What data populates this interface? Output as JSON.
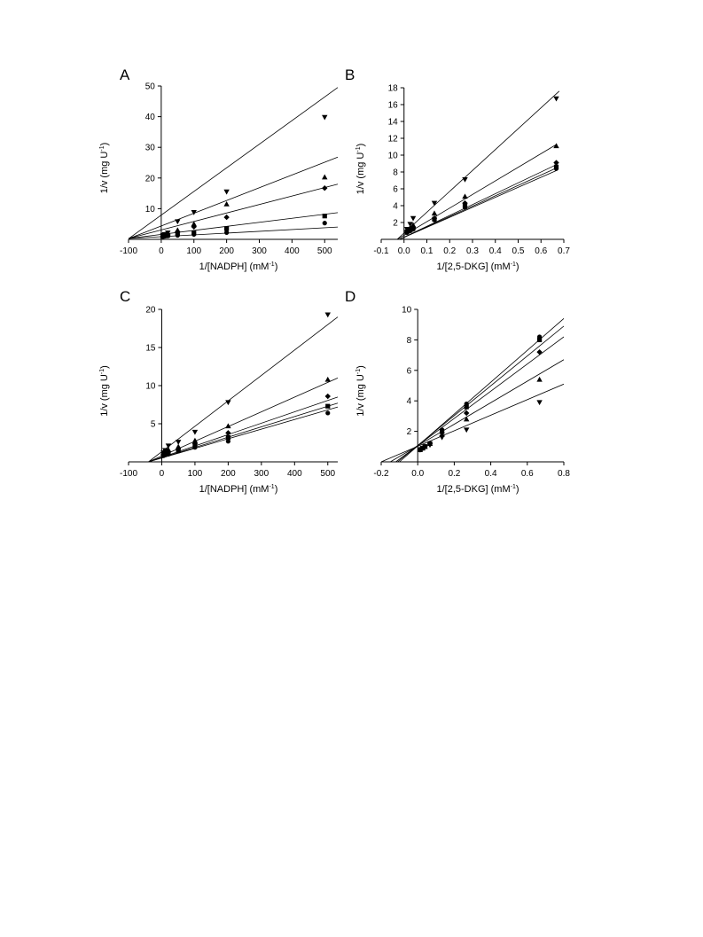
{
  "chart_data": [
    {
      "panel": "A",
      "type": "scatter",
      "xlabel": "1/[NADPH] (mM",
      "xlabel_sup": "-1",
      "xlabel_end": ")",
      "ylabel": "1/v (mg U",
      "ylabel_sup": "-1",
      "ylabel_end": ")",
      "xlim": [
        -100,
        540
      ],
      "ylim": [
        0,
        50
      ],
      "xticks": [
        -100,
        0,
        100,
        200,
        300,
        400,
        500
      ],
      "yticks": [
        10,
        20,
        30,
        40,
        50
      ],
      "grid": false,
      "series": [
        {
          "marker": "circle",
          "x": [
            5,
            10,
            20,
            50,
            100,
            200,
            500
          ],
          "y": [
            0.9,
            1.0,
            1.1,
            1.3,
            1.6,
            2.2,
            5.3
          ],
          "line": [
            [
              -100,
              0.3
            ],
            [
              540,
              4.0
            ]
          ]
        },
        {
          "marker": "square",
          "x": [
            5,
            10,
            20,
            50,
            100,
            200,
            500
          ],
          "y": [
            1.0,
            1.1,
            1.3,
            1.8,
            2.1,
            3.5,
            7.6
          ],
          "line": [
            [
              -100,
              0.3
            ],
            [
              540,
              8.7
            ]
          ]
        },
        {
          "marker": "diamond",
          "x": [
            5,
            10,
            20,
            50,
            100,
            200,
            500
          ],
          "y": [
            1.1,
            1.3,
            1.6,
            2.5,
            4.1,
            7.2,
            16.7
          ],
          "line": [
            [
              -100,
              0.3
            ],
            [
              540,
              18.0
            ]
          ]
        },
        {
          "marker": "triangle-up",
          "x": [
            5,
            10,
            20,
            50,
            100,
            200,
            500
          ],
          "y": [
            1.2,
            1.5,
            1.9,
            3.0,
            5.0,
            11.5,
            20.3
          ],
          "line": [
            [
              -100,
              0.2
            ],
            [
              540,
              26.8
            ]
          ]
        },
        {
          "marker": "triangle-down",
          "x": [
            5,
            10,
            20,
            50,
            100,
            200,
            500
          ],
          "y": [
            1.3,
            1.6,
            2.1,
            5.8,
            8.8,
            15.5,
            39.8
          ],
          "line": [
            [
              -100,
              0.2
            ],
            [
              540,
              49.5
            ]
          ]
        }
      ]
    },
    {
      "panel": "B",
      "type": "scatter",
      "xlabel": "1/[2,5-DKG] (mM",
      "xlabel_sup": "-1",
      "xlabel_end": ")",
      "ylabel": "1/v (mg U",
      "ylabel_sup": "-1",
      "ylabel_end": ")",
      "xlim": [
        -0.1,
        0.7
      ],
      "ylim": [
        0,
        18
      ],
      "xticks": [
        -0.1,
        0.0,
        0.1,
        0.2,
        0.3,
        0.4,
        0.5,
        0.6,
        0.7
      ],
      "yticks": [
        2,
        4,
        6,
        8,
        10,
        12,
        14,
        16,
        18
      ],
      "grid": false,
      "series": [
        {
          "marker": "circle",
          "x": [
            0.013,
            0.027,
            0.04,
            0.133,
            0.267,
            0.667
          ],
          "y": [
            0.8,
            1.0,
            1.2,
            2.3,
            3.8,
            8.4
          ],
          "line": [
            [
              -0.02,
              0.0
            ],
            [
              0.67,
              8.2
            ]
          ]
        },
        {
          "marker": "square",
          "x": [
            0.013,
            0.027,
            0.04,
            0.133,
            0.267,
            0.667
          ],
          "y": [
            0.9,
            1.1,
            1.3,
            2.4,
            4.0,
            8.6
          ],
          "line": [
            [
              -0.02,
              0.0
            ],
            [
              0.67,
              8.5
            ]
          ]
        },
        {
          "marker": "diamond",
          "x": [
            0.013,
            0.027,
            0.04,
            0.133,
            0.267,
            0.667
          ],
          "y": [
            1.0,
            1.2,
            1.4,
            2.5,
            4.3,
            9.1
          ],
          "line": [
            [
              -0.02,
              0.0
            ],
            [
              0.67,
              8.9
            ]
          ]
        },
        {
          "marker": "triangle-up",
          "x": [
            0.013,
            0.027,
            0.04,
            0.133,
            0.267,
            0.667
          ],
          "y": [
            1.1,
            1.4,
            1.7,
            3.1,
            5.1,
            11.1
          ],
          "line": [
            [
              -0.03,
              0.0
            ],
            [
              0.67,
              11.3
            ]
          ]
        },
        {
          "marker": "triangle-down",
          "x": [
            0.013,
            0.027,
            0.04,
            0.133,
            0.267,
            0.667
          ],
          "y": [
            1.2,
            1.8,
            2.5,
            4.3,
            7.1,
            16.7
          ],
          "line": [
            [
              -0.03,
              0.0
            ],
            [
              0.68,
              17.6
            ]
          ]
        }
      ]
    },
    {
      "panel": "C",
      "type": "scatter",
      "xlabel": "1/[NADPH] (mM",
      "xlabel_sup": "-1",
      "xlabel_end": ")",
      "ylabel": "1/v (mg U",
      "ylabel_sup": "-1",
      "ylabel_end": ")",
      "xlim": [
        -100,
        530
      ],
      "ylim": [
        0,
        20
      ],
      "xticks": [
        -100,
        0,
        100,
        200,
        300,
        400,
        500
      ],
      "yticks": [
        5,
        10,
        15,
        20
      ],
      "grid": false,
      "series": [
        {
          "marker": "circle",
          "x": [
            5,
            10,
            20,
            50,
            100,
            200,
            500
          ],
          "y": [
            0.8,
            0.9,
            1.0,
            1.4,
            1.9,
            2.7,
            6.4
          ],
          "line": [
            [
              -40,
              0.0
            ],
            [
              530,
              7.2
            ]
          ]
        },
        {
          "marker": "square",
          "x": [
            5,
            10,
            20,
            50,
            100,
            200,
            500
          ],
          "y": [
            0.9,
            1.0,
            1.1,
            1.5,
            2.1,
            3.2,
            7.3
          ],
          "line": [
            [
              -40,
              0.0
            ],
            [
              530,
              7.7
            ]
          ]
        },
        {
          "marker": "diamond",
          "x": [
            5,
            10,
            20,
            50,
            100,
            200,
            500
          ],
          "y": [
            1.0,
            1.1,
            1.3,
            1.7,
            2.4,
            3.8,
            8.6
          ],
          "line": [
            [
              -40,
              0.0
            ],
            [
              530,
              8.5
            ]
          ]
        },
        {
          "marker": "triangle-up",
          "x": [
            5,
            10,
            20,
            50,
            100,
            200,
            500
          ],
          "y": [
            1.1,
            1.3,
            1.6,
            2.0,
            2.8,
            4.7,
            10.8
          ],
          "line": [
            [
              -40,
              0.0
            ],
            [
              530,
              11.0
            ]
          ]
        },
        {
          "marker": "triangle-down",
          "x": [
            5,
            10,
            20,
            50,
            100,
            200,
            500
          ],
          "y": [
            1.2,
            1.5,
            2.1,
            2.6,
            3.9,
            7.8,
            19.3
          ],
          "line": [
            [
              -40,
              0.0
            ],
            [
              530,
              19.0
            ]
          ]
        }
      ]
    },
    {
      "panel": "D",
      "type": "scatter",
      "xlabel": "1/[2,5-DKG] (mM",
      "xlabel_sup": "-1",
      "xlabel_end": ")",
      "ylabel": "1/v (mg U",
      "ylabel_sup": "-1",
      "ylabel_end": ")",
      "xlim": [
        -0.2,
        0.8
      ],
      "ylim": [
        0,
        10
      ],
      "xticks": [
        -0.2,
        0.0,
        0.2,
        0.4,
        0.6,
        0.8
      ],
      "yticks": [
        2,
        4,
        6,
        8,
        10
      ],
      "grid": false,
      "series": [
        {
          "marker": "circle",
          "x": [
            0.013,
            0.027,
            0.04,
            0.067,
            0.133,
            0.267,
            0.667
          ],
          "y": [
            0.8,
            0.9,
            1.0,
            1.2,
            2.1,
            3.8,
            8.2
          ],
          "line": [
            [
              -0.1,
              0.0
            ],
            [
              0.8,
              9.4
            ]
          ]
        },
        {
          "marker": "square",
          "x": [
            0.013,
            0.027,
            0.04,
            0.067,
            0.133,
            0.267,
            0.667
          ],
          "y": [
            0.8,
            0.9,
            1.0,
            1.2,
            2.0,
            3.6,
            8.0
          ],
          "line": [
            [
              -0.11,
              0.0
            ],
            [
              0.8,
              8.9
            ]
          ]
        },
        {
          "marker": "diamond",
          "x": [
            0.013,
            0.027,
            0.04,
            0.067,
            0.133,
            0.267,
            0.667
          ],
          "y": [
            0.8,
            0.9,
            1.0,
            1.2,
            1.9,
            3.2,
            7.2
          ],
          "line": [
            [
              -0.12,
              0.0
            ],
            [
              0.8,
              8.2
            ]
          ]
        },
        {
          "marker": "triangle-up",
          "x": [
            0.013,
            0.027,
            0.04,
            0.067,
            0.133,
            0.267,
            0.667
          ],
          "y": [
            0.8,
            0.9,
            1.0,
            1.2,
            1.8,
            2.8,
            5.4
          ],
          "line": [
            [
              -0.15,
              0.0
            ],
            [
              0.8,
              6.7
            ]
          ]
        },
        {
          "marker": "triangle-down",
          "x": [
            0.013,
            0.027,
            0.04,
            0.067,
            0.133,
            0.267,
            0.667
          ],
          "y": [
            0.8,
            0.9,
            1.0,
            1.1,
            1.6,
            2.1,
            3.9
          ],
          "line": [
            [
              -0.2,
              0.0
            ],
            [
              0.8,
              5.1
            ]
          ]
        }
      ]
    }
  ]
}
